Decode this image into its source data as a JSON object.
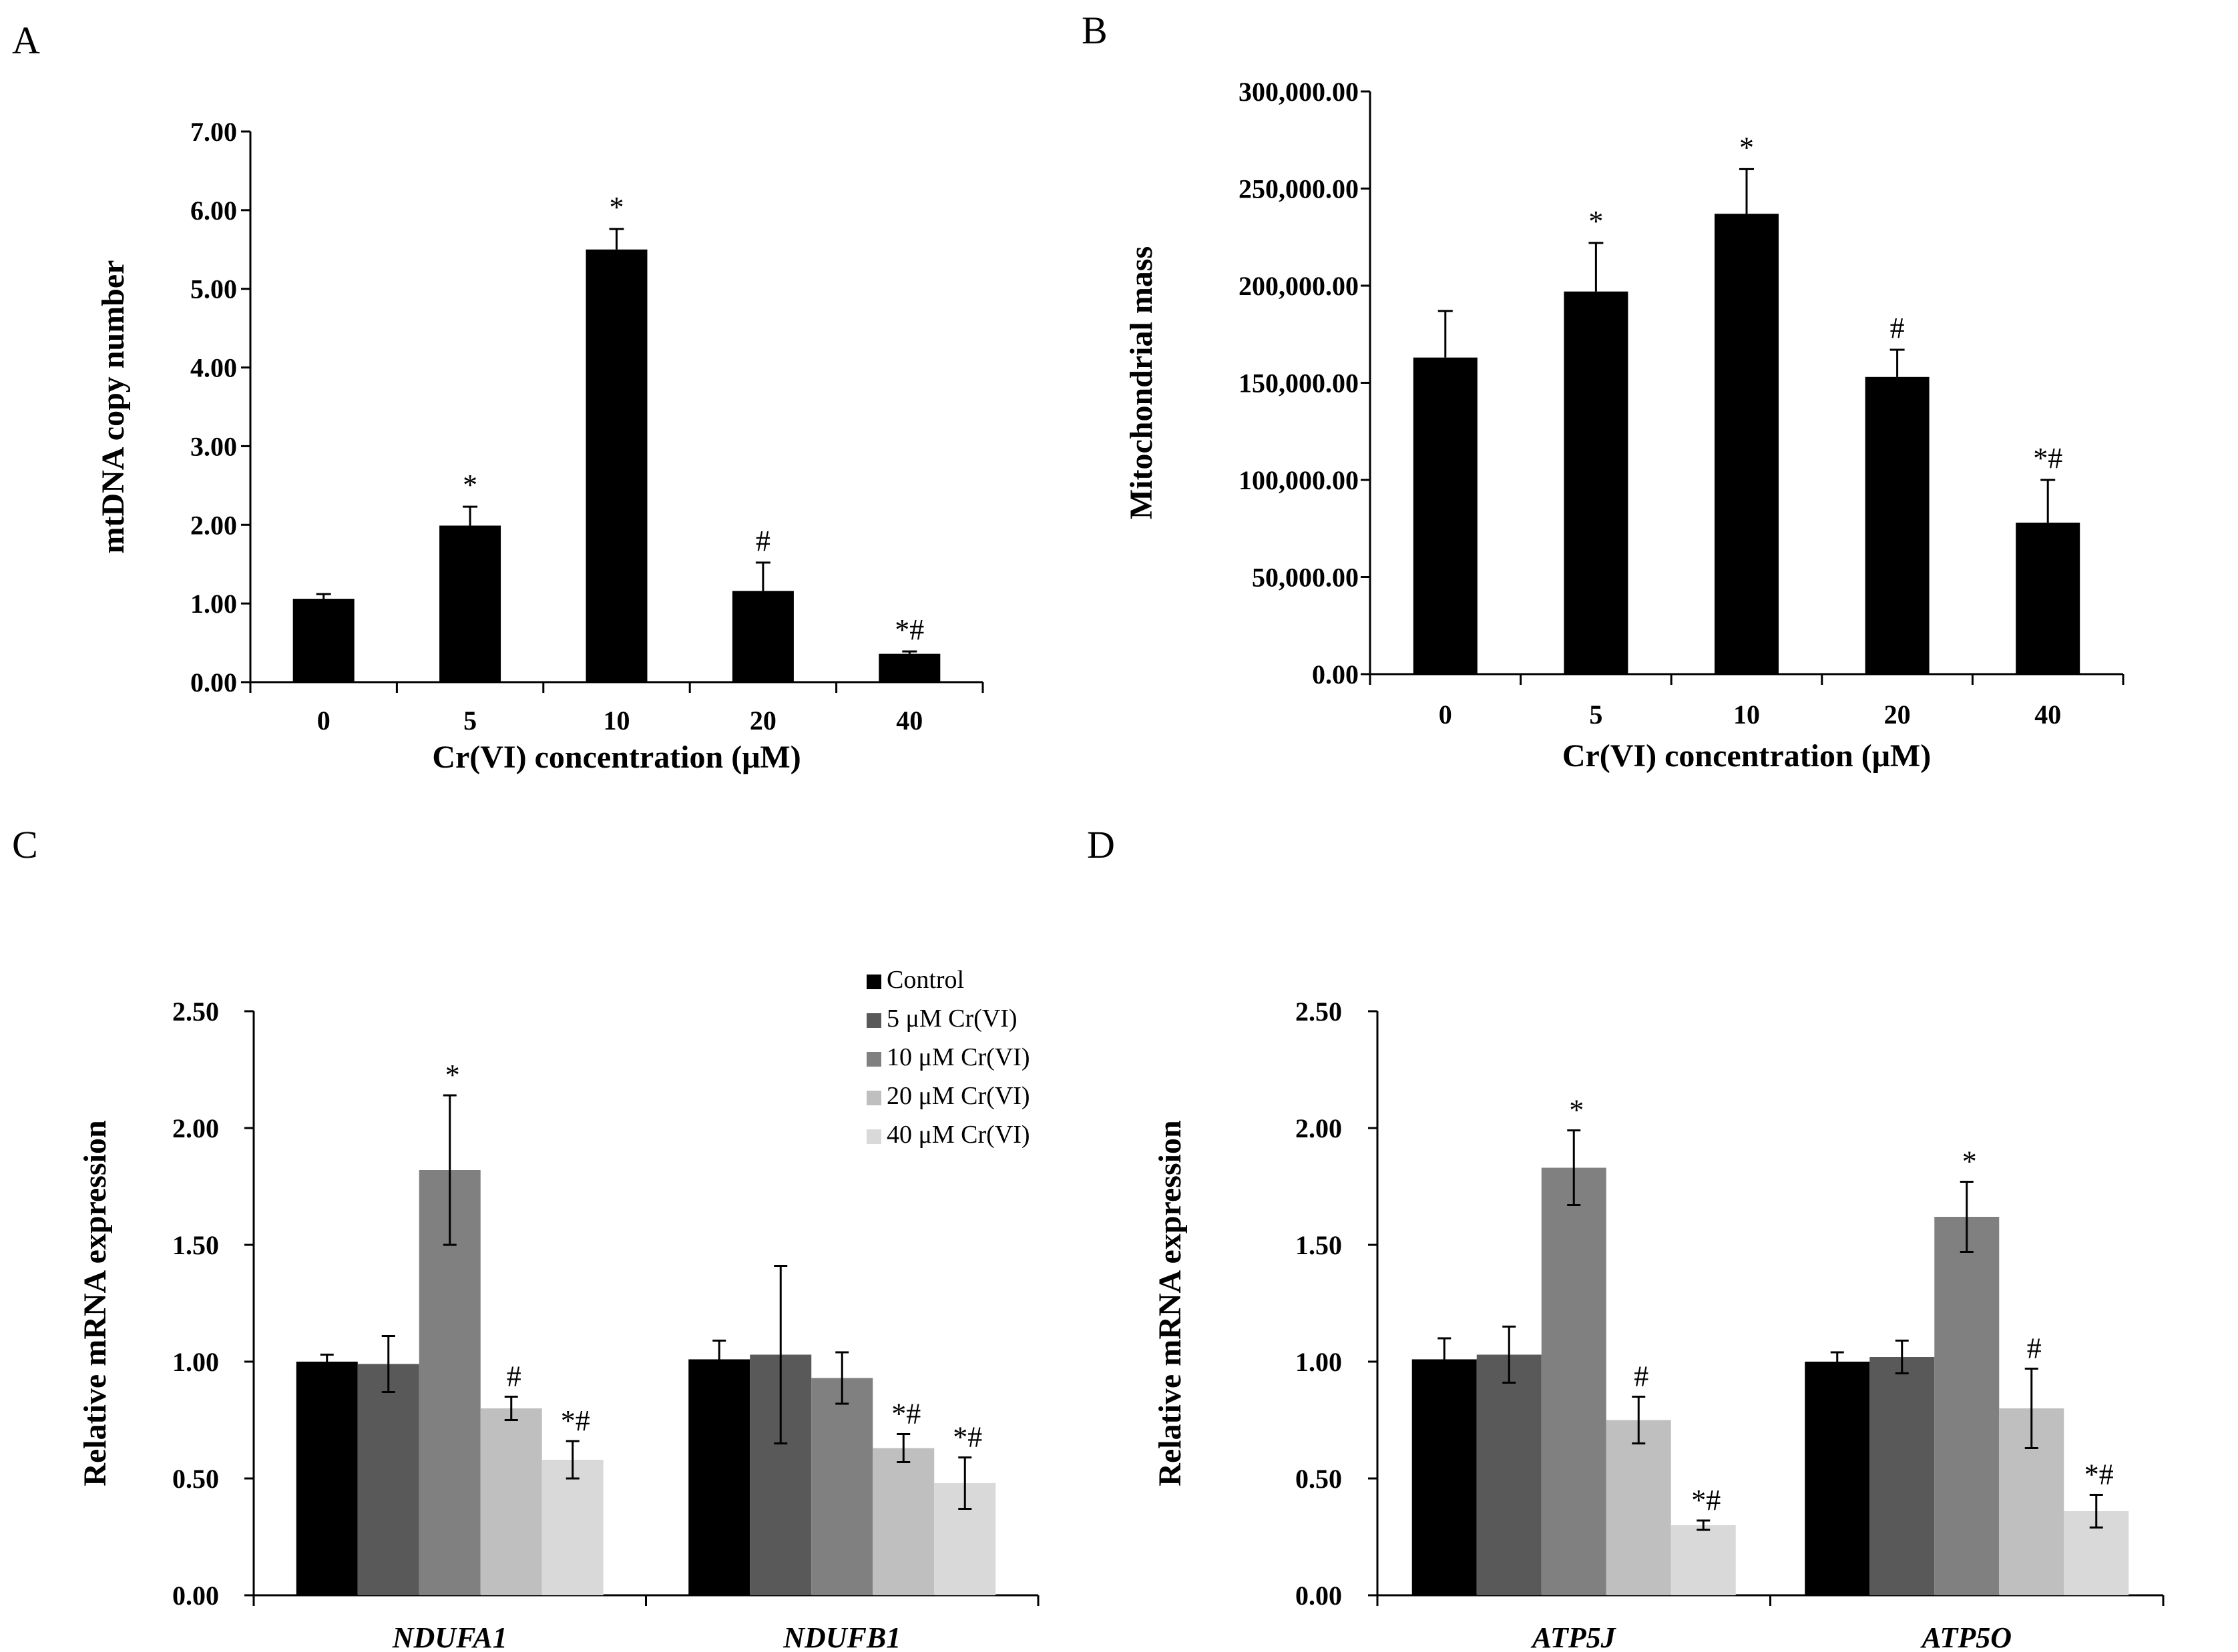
{
  "chart_data": [
    {
      "panel": "A",
      "type": "bar",
      "xlabel": "Cr(VI) concentration (μM)",
      "ylabel": "mtDNA copy number",
      "ylim": [
        0,
        7
      ],
      "yticks": [
        "0.00",
        "1.00",
        "2.00",
        "3.00",
        "4.00",
        "5.00",
        "6.00",
        "7.00"
      ],
      "ytick_values": [
        0,
        1,
        2,
        3,
        4,
        5,
        6,
        7
      ],
      "categories": [
        "0",
        "5",
        "10",
        "20",
        "40"
      ],
      "series": [
        {
          "name": "mtDNA copy number",
          "color": "#000000",
          "values": [
            1.06,
            1.99,
            5.5,
            1.16,
            0.36
          ],
          "errors": [
            0.06,
            0.24,
            0.26,
            0.36,
            0.03
          ],
          "annotations": [
            "",
            "*",
            "*",
            "#",
            "*#"
          ]
        }
      ]
    },
    {
      "panel": "B",
      "type": "bar",
      "xlabel": "Cr(VI) concentration (μM)",
      "ylabel": "Mitochondrial mass",
      "ylim": [
        0,
        300000
      ],
      "yticks": [
        "0.00",
        "50,000.00",
        "100,000.00",
        "150,000.00",
        "200,000.00",
        "250,000.00",
        "300,000.00"
      ],
      "ytick_values": [
        0,
        50000,
        100000,
        150000,
        200000,
        250000,
        300000
      ],
      "categories": [
        "0",
        "5",
        "10",
        "20",
        "40"
      ],
      "series": [
        {
          "name": "Mitochondrial mass",
          "color": "#000000",
          "values": [
            163000,
            197000,
            237000,
            153000,
            78000
          ],
          "errors": [
            24000,
            25000,
            23000,
            14000,
            22000
          ],
          "annotations": [
            "",
            "*",
            "*",
            "#",
            "*#"
          ]
        }
      ]
    },
    {
      "panel": "C",
      "type": "bar",
      "ylabel": "Relative mRNA expression",
      "ylim": [
        0,
        2.5
      ],
      "yticks": [
        "0.00",
        "0.50",
        "1.00",
        "1.50",
        "2.00",
        "2.50"
      ],
      "ytick_values": [
        0,
        0.5,
        1,
        1.5,
        2,
        2.5
      ],
      "categories": [
        "NDUFA1",
        "NDUFB1"
      ],
      "legend": [
        "Control",
        "5 μM Cr(VI)",
        "10 μM Cr(VI)",
        "20 μM Cr(VI)",
        "40 μM Cr(VI)"
      ],
      "series": [
        {
          "name": "Control",
          "color": "#000000",
          "values": [
            1.0,
            1.01
          ],
          "errors": [
            0.03,
            0.08
          ],
          "annotations": [
            "",
            ""
          ]
        },
        {
          "name": "5 μM Cr(VI)",
          "color": "#595959",
          "values": [
            0.99,
            1.03
          ],
          "errors": [
            0.12,
            0.38
          ],
          "annotations": [
            "",
            ""
          ]
        },
        {
          "name": "10 μM Cr(VI)",
          "color": "#808080",
          "values": [
            1.82,
            0.93
          ],
          "errors": [
            0.32,
            0.11
          ],
          "annotations": [
            "*",
            ""
          ]
        },
        {
          "name": "20 μM Cr(VI)",
          "color": "#bfbfbf",
          "values": [
            0.8,
            0.63
          ],
          "errors": [
            0.05,
            0.06
          ],
          "annotations": [
            "#",
            "*#"
          ]
        },
        {
          "name": "40 μM Cr(VI)",
          "color": "#d9d9d9",
          "values": [
            0.58,
            0.48
          ],
          "errors": [
            0.08,
            0.11
          ],
          "annotations": [
            "*#",
            "*#"
          ]
        }
      ]
    },
    {
      "panel": "D",
      "type": "bar",
      "ylabel": "Relative mRNA expression",
      "ylim": [
        0,
        2.5
      ],
      "yticks": [
        "0.00",
        "0.50",
        "1.00",
        "1.50",
        "2.00",
        "2.50"
      ],
      "ytick_values": [
        0,
        0.5,
        1,
        1.5,
        2,
        2.5
      ],
      "categories": [
        "ATP5J",
        "ATP5O"
      ],
      "series": [
        {
          "name": "Control",
          "color": "#000000",
          "values": [
            1.01,
            1.0
          ],
          "errors": [
            0.09,
            0.04
          ],
          "annotations": [
            "",
            ""
          ]
        },
        {
          "name": "5 μM Cr(VI)",
          "color": "#595959",
          "values": [
            1.03,
            1.02
          ],
          "errors": [
            0.12,
            0.07
          ],
          "annotations": [
            "",
            ""
          ]
        },
        {
          "name": "10 μM Cr(VI)",
          "color": "#808080",
          "values": [
            1.83,
            1.62
          ],
          "errors": [
            0.16,
            0.15
          ],
          "annotations": [
            "*",
            "*"
          ]
        },
        {
          "name": "20 μM Cr(VI)",
          "color": "#bfbfbf",
          "values": [
            0.75,
            0.8
          ],
          "errors": [
            0.1,
            0.17
          ],
          "annotations": [
            "#",
            "#"
          ]
        },
        {
          "name": "40 μM Cr(VI)",
          "color": "#d9d9d9",
          "values": [
            0.3,
            0.36
          ],
          "errors": [
            0.02,
            0.07
          ],
          "annotations": [
            "*#",
            "*#"
          ]
        }
      ]
    }
  ]
}
